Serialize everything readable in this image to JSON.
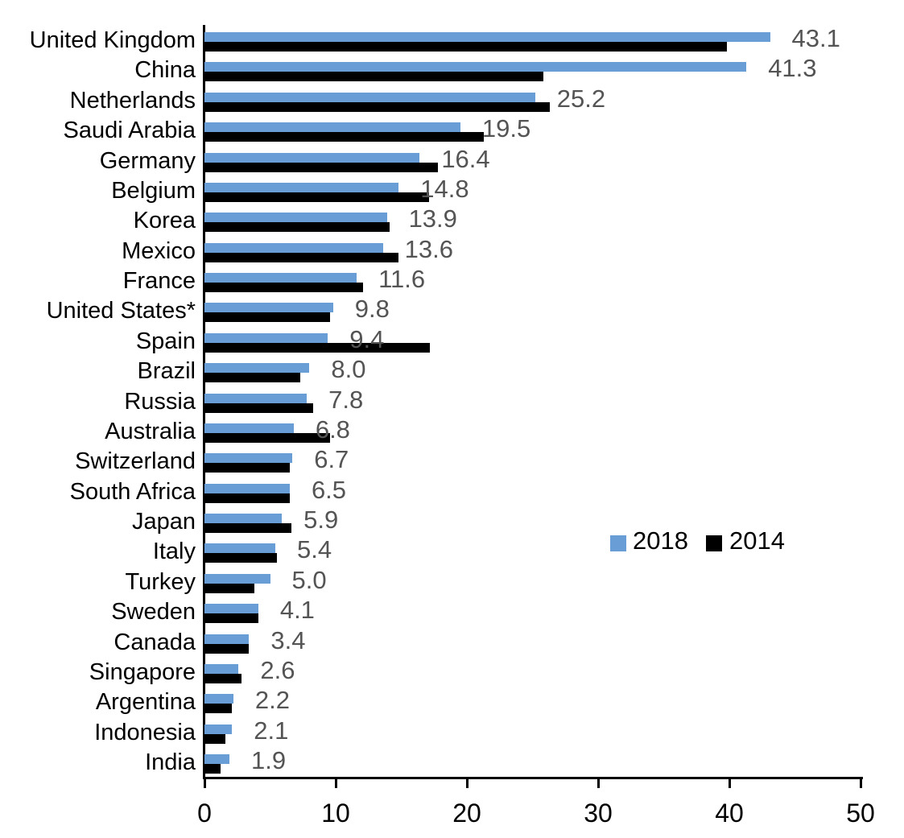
{
  "chart_data": {
    "type": "bar",
    "orientation": "horizontal",
    "title": "",
    "xlabel": "",
    "ylabel": "",
    "xlim": [
      0,
      50
    ],
    "x_ticks": [
      0,
      10,
      20,
      30,
      40,
      50
    ],
    "grid": false,
    "legend_position": "right-middle",
    "value_label_color": "#545454",
    "categories": [
      "United Kingdom",
      "China",
      "Netherlands",
      "Saudi Arabia",
      "Germany",
      "Belgium",
      "Korea",
      "Mexico",
      "France",
      "United States*",
      "Spain",
      "Brazil",
      "Russia",
      "Australia",
      "Switzerland",
      "South Africa",
      "Japan",
      "Italy",
      "Turkey",
      "Sweden",
      "Canada",
      "Singapore",
      "Argentina",
      "Indonesia",
      "India"
    ],
    "series": [
      {
        "name": "2018",
        "color": "#689DD5",
        "values": [
          43.1,
          41.3,
          25.2,
          19.5,
          16.4,
          14.8,
          13.9,
          13.6,
          11.6,
          9.8,
          9.4,
          8.0,
          7.8,
          6.8,
          6.7,
          6.5,
          5.9,
          5.4,
          5.0,
          4.1,
          3.4,
          2.6,
          2.2,
          2.1,
          1.9
        ],
        "data_labels": [
          "43.1",
          "41.3",
          "25.2",
          "19.5",
          "16.4",
          "14.8",
          "13.9",
          "13.6",
          "11.6",
          "9.8",
          "9.4",
          "8.0",
          "7.8",
          "6.8",
          "6.7",
          "6.5",
          "5.9",
          "5.4",
          "5.0",
          "4.1",
          "3.4",
          "2.6",
          "2.2",
          "2.1",
          "1.9"
        ]
      },
      {
        "name": "2014",
        "color": "#000000",
        "values": [
          39.8,
          25.8,
          26.3,
          21.3,
          17.8,
          17.1,
          14.1,
          14.8,
          12.1,
          9.6,
          17.2,
          7.3,
          8.3,
          9.6,
          6.5,
          6.5,
          6.6,
          5.5,
          3.8,
          4.1,
          3.4,
          2.8,
          2.1,
          1.6,
          1.2
        ],
        "data_labels": null
      }
    ]
  }
}
